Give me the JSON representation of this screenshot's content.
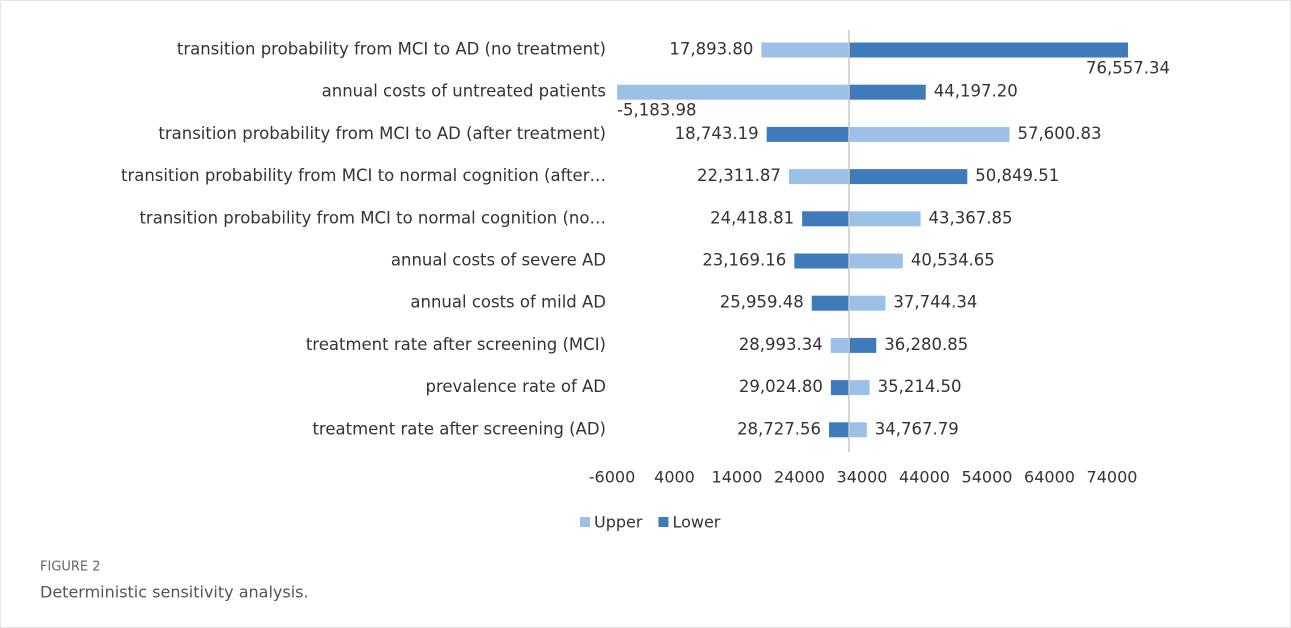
{
  "chart_data": {
    "type": "tornado",
    "categories": [
      "transition probability from MCI to AD (no treatment)",
      "annual costs of untreated patients",
      "transition probability from MCI to AD (after treatment)",
      "transition probability from MCI to normal cognition (after…",
      "transition probability from MCI to normal cognition (no…",
      "annual costs of severe AD",
      "annual costs of mild AD",
      "treatment rate after screening (MCI)",
      "prevalence rate of AD",
      "treatment rate after screening (AD)"
    ],
    "series": [
      {
        "name": "Upper",
        "color": "#9dc0e6",
        "values": [
          17893.8,
          -5183.98,
          57600.83,
          22311.87,
          43367.85,
          40534.65,
          37744.34,
          28993.34,
          35214.5,
          34767.79
        ],
        "value_labels": [
          "17,893.80",
          "-5,183.98",
          "57,600.83",
          "22,311.87",
          "43,367.85",
          "40,534.65",
          "37,744.34",
          "28,993.34",
          "35,214.50",
          "34,767.79"
        ]
      },
      {
        "name": "Lower",
        "color": "#3f7bbb",
        "values": [
          76557.34,
          44197.2,
          18743.19,
          50849.51,
          24418.81,
          23169.16,
          25959.48,
          36280.85,
          29024.8,
          28727.56
        ],
        "value_labels": [
          "76,557.34",
          "44,197.20",
          "18,743.19",
          "50,849.51",
          "24,418.81",
          "23,169.16",
          "25,959.48",
          "36,280.85",
          "29,024.80",
          "28,727.56"
        ]
      }
    ],
    "xlim": [
      -6000,
      78000
    ],
    "xticks": [
      -6000,
      4000,
      14000,
      24000,
      34000,
      44000,
      54000,
      64000,
      74000
    ],
    "axis_crosses": 31920,
    "legend": "bottom"
  },
  "figure_label": "FIGURE 2",
  "caption": "Deterministic sensitivity analysis."
}
